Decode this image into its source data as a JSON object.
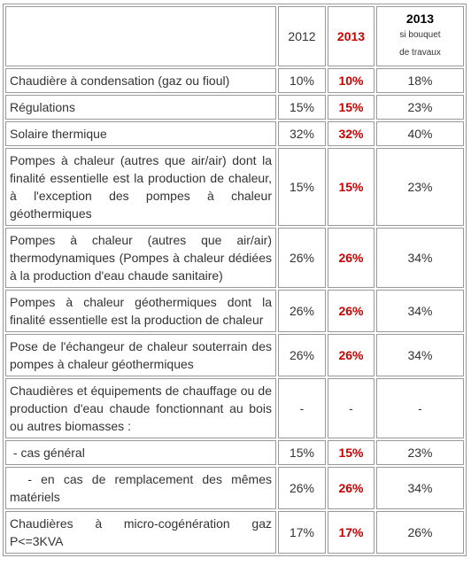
{
  "header": {
    "col_2012": "2012",
    "col_2013": "2013",
    "col_bouquet_year": "2013",
    "col_bouquet_line1": "si bouquet",
    "col_bouquet_line2": "de travaux"
  },
  "rows": [
    {
      "label": "Chaudière à condensation (gaz ou fioul)",
      "v2012": "10%",
      "v2013": "10%",
      "bouquet": "18%"
    },
    {
      "label": "Régulations",
      "v2012": "15%",
      "v2013": "15%",
      "bouquet": "23%"
    },
    {
      "label": "Solaire thermique",
      "v2012": "32%",
      "v2013": "32%",
      "bouquet": "40%"
    },
    {
      "label": "Pompes à chaleur (autres que air/air) dont la finalité essentielle est la production de chaleur, à l'exception des pompes à chaleur géothermiques",
      "v2012": "15%",
      "v2013": "15%",
      "bouquet": "23%"
    },
    {
      "label": "Pompes à chaleur (autres que air/air) thermodynamiques (Pompes à chaleur dédiées à la production d'eau chaude sanitaire)",
      "v2012": "26%",
      "v2013": "26%",
      "bouquet": "34%"
    },
    {
      "label": "Pompes à chaleur géothermiques dont la finalité essentielle est la production de chaleur",
      "v2012": "26%",
      "v2013": "26%",
      "bouquet": "34%"
    },
    {
      "label": "Pose de l'échangeur de chaleur souterrain des pompes à chaleur géothermiques",
      "v2012": "26%",
      "v2013": "26%",
      "bouquet": "34%"
    },
    {
      "label": "Chaudières et équipements de chauffage ou de production d'eau chaude fonctionnant au bois ou autres biomasses :",
      "v2012": "-",
      "v2013": "-",
      "bouquet": "-"
    },
    {
      "label": " - cas général",
      "v2012": "15%",
      "v2013": "15%",
      "bouquet": "23%"
    },
    {
      "label": "  - en cas de remplacement des mêmes matériels",
      "v2012": "26%",
      "v2013": "26%",
      "bouquet": "34%"
    },
    {
      "label": "Chaudières à micro-cogénération gaz P<=3KVA",
      "v2012": "17%",
      "v2013": "17%",
      "bouquet": "26%"
    }
  ]
}
